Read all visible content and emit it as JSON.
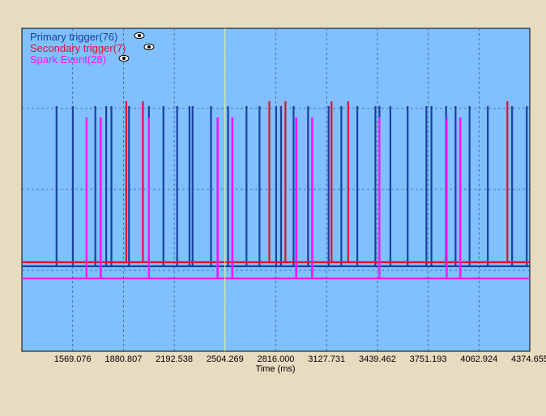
{
  "chart_data": {
    "type": "line",
    "title": "",
    "xlabel": "Time (ms)",
    "ylabel": "",
    "xlim": [
      1257.345,
      4374.655
    ],
    "x_ticks": [
      "1569.076",
      "1880.807",
      "2192.538",
      "2504.269",
      "2816.000",
      "3127.731",
      "3439.462",
      "3751.193",
      "4062.924",
      "4374.655"
    ],
    "x_tick_values": [
      1569.076,
      1880.807,
      2192.538,
      2504.269,
      2816.0,
      3127.731,
      3439.462,
      3751.193,
      4062.924,
      4374.655
    ],
    "cursor_x": 2504.269,
    "grid": true,
    "legend_position": "top-left",
    "colors": {
      "plot_bg": "#80c0ff",
      "page_bg": "#e8dcc0",
      "grid": "#3a5a8a",
      "cursor": "#ffff80"
    },
    "series": [
      {
        "name": "Primary trigger(76)",
        "color": "#1a3fa0",
        "baseline_label": "low",
        "pulse_level": "high",
        "events": [
          1470,
          1570,
          1708,
          1775,
          1807,
          1915,
          2037,
          2126,
          2210,
          2286,
          2305,
          2418,
          2523,
          2636,
          2716,
          2818,
          2848,
          2925,
          3014,
          3140,
          3218,
          3316,
          3427,
          3452,
          3519,
          3625,
          3740,
          3771,
          3861,
          3919,
          4005,
          4117,
          4266,
          4356
        ]
      },
      {
        "name": "Secondary trigger(7)",
        "color": "#e01030",
        "pulse_level": "highest",
        "events": [
          1898,
          2000,
          2776,
          2875,
          3158,
          3260,
          4237
        ]
      },
      {
        "name": "Spark Event(28)",
        "color": "#ff10ff",
        "pulse_level": "mid",
        "events": [
          1654,
          1740,
          1741,
          1742,
          2037,
          2458,
          2459,
          2460,
          2548,
          2549,
          2550,
          2940,
          2941,
          2942,
          3038,
          3039,
          3040,
          3452,
          3865,
          3947,
          3948,
          3949
        ]
      }
    ]
  },
  "legend": {
    "items": [
      {
        "label": "Primary trigger(76)",
        "color": "#1a3fa0",
        "icon": "eye-icon"
      },
      {
        "label": "Secondary trigger(7)",
        "color": "#e01030",
        "icon": "eye-icon"
      },
      {
        "label": "Spark Event(28)",
        "color": "#ff10ff",
        "icon": "eye-icon"
      }
    ]
  }
}
